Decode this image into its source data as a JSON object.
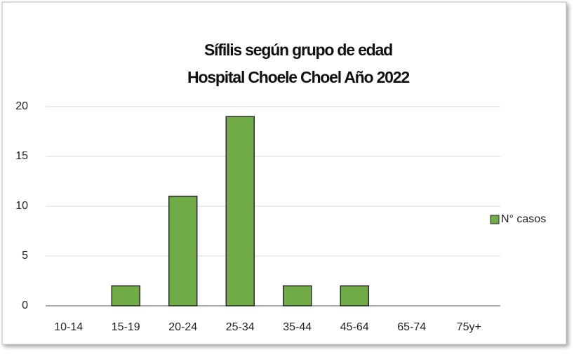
{
  "chart_data": {
    "type": "bar",
    "title": [
      "Sífilis según grupo de edad",
      "Hospital Choele Choel Año 2022"
    ],
    "categories": [
      "10-14",
      "15-19",
      "20-24",
      "25-34",
      "35-44",
      "45-64",
      "65-74",
      "75y+"
    ],
    "series": [
      {
        "name": "N° casos",
        "color": "#70ad47",
        "values": [
          0,
          2,
          11,
          19,
          2,
          2,
          0,
          0
        ]
      }
    ],
    "ylim": [
      0,
      20
    ],
    "yticks": [
      0,
      5,
      10,
      15,
      20
    ],
    "grid": true,
    "legend": "right"
  }
}
